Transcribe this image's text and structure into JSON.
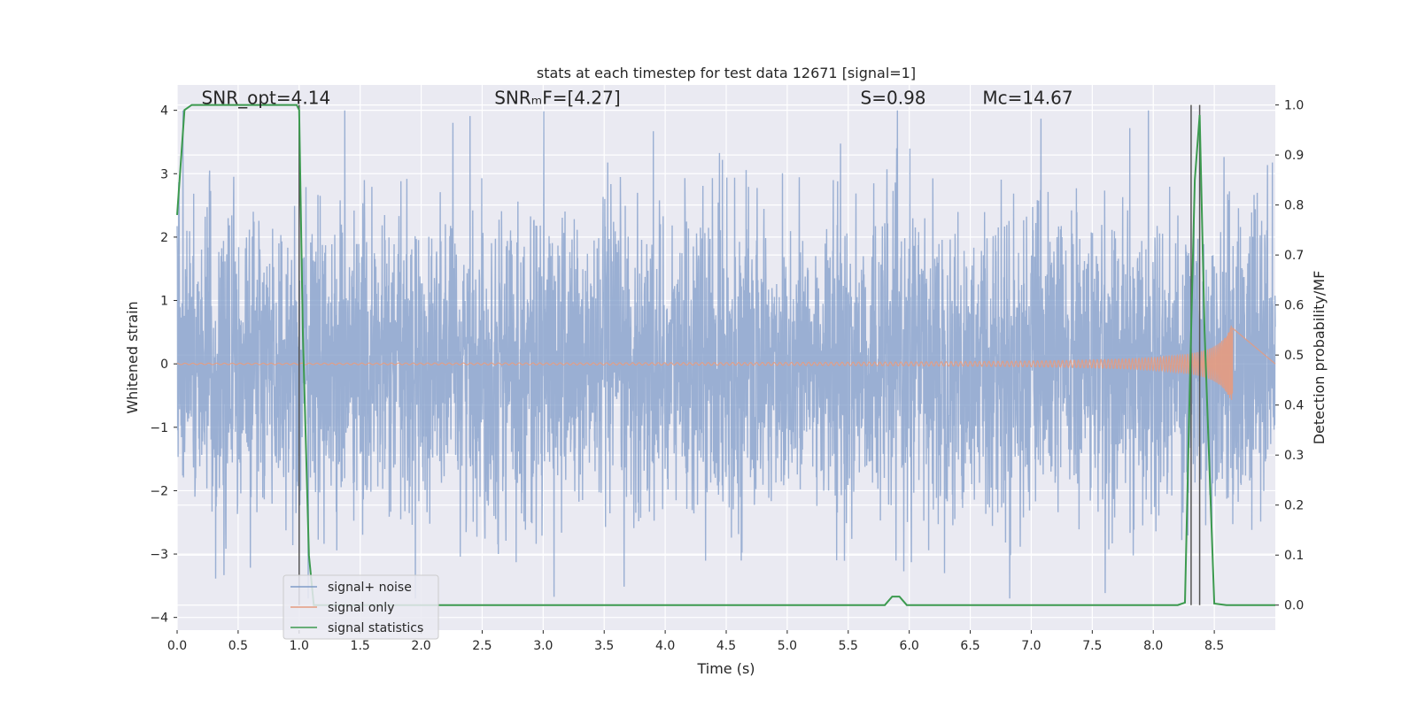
{
  "chart_data": {
    "type": "line",
    "title": "stats at each timestep for test data 12671 [signal=1]",
    "xlabel": "Time (s)",
    "ylabel_left": "Whitened strain",
    "ylabel_right": "Detection probability/MF",
    "xlim": [
      0.0,
      9.0
    ],
    "ylim_left": [
      -4.2,
      4.4
    ],
    "ylim_right": [
      -0.05,
      1.04
    ],
    "xticks": [
      "0.0",
      "0.5",
      "1.0",
      "1.5",
      "2.0",
      "2.5",
      "3.0",
      "3.5",
      "4.0",
      "4.5",
      "5.0",
      "5.5",
      "6.0",
      "6.5",
      "7.0",
      "7.5",
      "8.0",
      "8.5"
    ],
    "xtick_values": [
      0.0,
      0.5,
      1.0,
      1.5,
      2.0,
      2.5,
      3.0,
      3.5,
      4.0,
      4.5,
      5.0,
      5.5,
      6.0,
      6.5,
      7.0,
      7.5,
      8.0,
      8.5
    ],
    "yticks_left": [
      "4",
      "3",
      "2",
      "1",
      "0",
      "−1",
      "−2",
      "−3",
      "−4"
    ],
    "ytick_values_left": [
      4,
      3,
      2,
      1,
      0,
      -1,
      -2,
      -3,
      -4
    ],
    "yticks_right": [
      "1.0",
      "0.9",
      "0.8",
      "0.7",
      "0.6",
      "0.5",
      "0.4",
      "0.3",
      "0.2",
      "0.1",
      "0.0"
    ],
    "ytick_values_right": [
      1.0,
      0.9,
      0.8,
      0.7,
      0.6,
      0.5,
      0.4,
      0.3,
      0.2,
      0.1,
      0.0
    ],
    "grid": true,
    "legend_position": "lower-left",
    "annotations": [
      {
        "text": "SNR_opt=4.14",
        "x": 0.2,
        "y": 4.1
      },
      {
        "text": "SNRₘF=[4.27]",
        "x": 2.6,
        "y": 4.1
      },
      {
        "text": "S=0.98",
        "x": 5.6,
        "y": 4.1
      },
      {
        "text": "Mᴄ=14.67",
        "x": 6.6,
        "y": 4.1
      }
    ],
    "vertical_lines_x": [
      1.0,
      8.31,
      8.38
    ],
    "series": [
      {
        "name": "signal+ noise",
        "axis": "left",
        "color": "#7f9bc8",
        "description_values": {
          "t_start": 0.0,
          "t_end": 9.0,
          "typical_amplitude": 1.5,
          "max": 4.0,
          "min": -3.7
        }
      },
      {
        "name": "signal only",
        "axis": "left",
        "color": "#e59b80",
        "chirp": {
          "t_start": 0.0,
          "t_merger": 8.66,
          "peak_amplitude": 0.75
        }
      },
      {
        "name": "signal statistics",
        "axis": "right",
        "color": "#3c9a4f",
        "x": [
          0.0,
          0.06,
          0.12,
          0.3,
          0.6,
          0.9,
          0.98,
          1.0,
          1.03,
          1.08,
          1.12,
          1.5,
          2.0,
          3.0,
          4.0,
          5.0,
          5.5,
          5.8,
          5.86,
          5.92,
          5.98,
          6.5,
          7.0,
          7.5,
          8.0,
          8.2,
          8.26,
          8.3,
          8.34,
          8.38,
          8.42,
          8.5,
          8.6,
          9.0
        ],
        "y": [
          0.78,
          0.99,
          1.0,
          1.0,
          1.0,
          1.0,
          1.0,
          0.99,
          0.55,
          0.1,
          0.0,
          0.0,
          0.0,
          0.0,
          0.0,
          0.0,
          0.0,
          0.0,
          0.017,
          0.017,
          0.0,
          0.0,
          0.0,
          0.0,
          0.0,
          0.0,
          0.005,
          0.45,
          0.85,
          0.98,
          0.55,
          0.003,
          0.0,
          0.0
        ]
      }
    ]
  },
  "legend": {
    "items": [
      "signal+ noise",
      "signal only",
      "signal statistics"
    ]
  }
}
